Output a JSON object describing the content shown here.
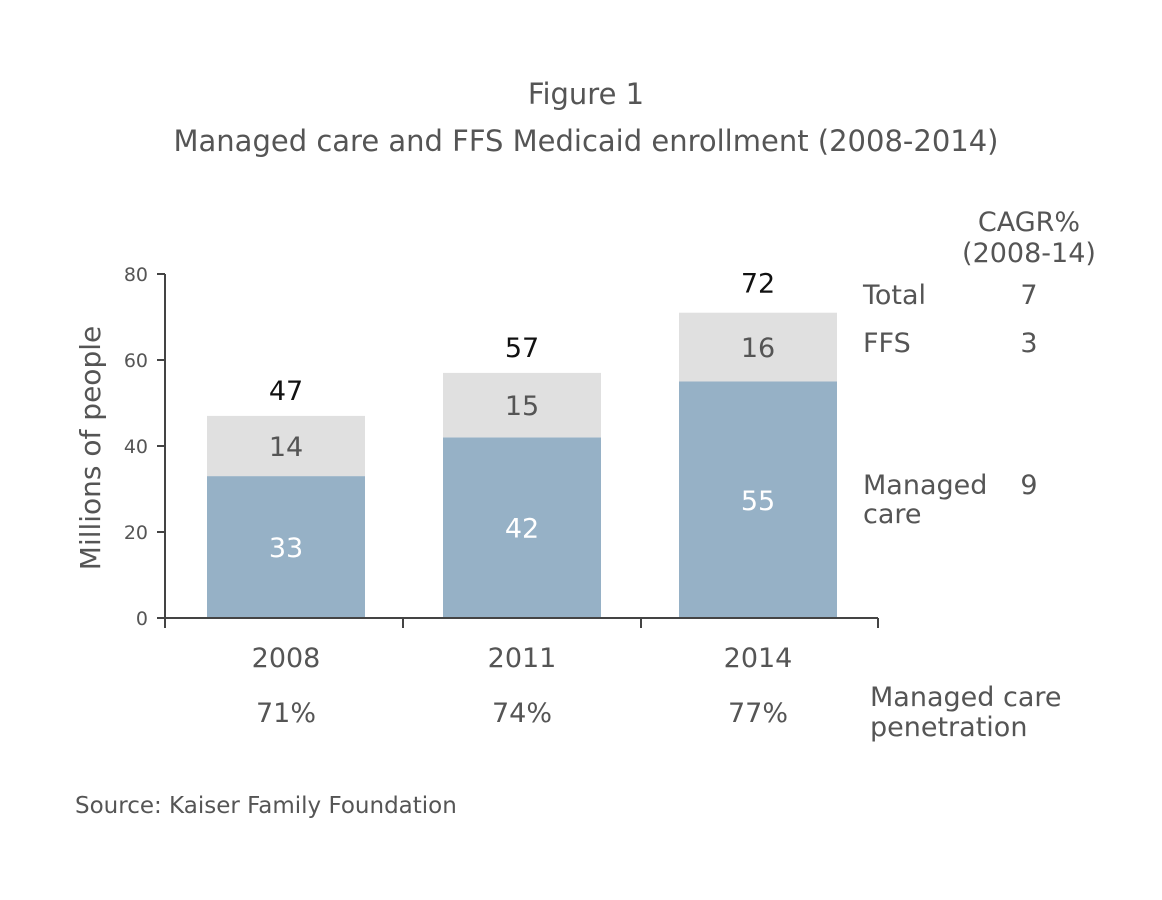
{
  "title_line1": "Figure 1",
  "title_line2": "Managed care and FFS Medicaid enrollment (2008-2014)",
  "source": "Source: Kaiser Family Foundation",
  "chart_data": {
    "type": "bar",
    "stacked": true,
    "categories": [
      "2008",
      "2011",
      "2014"
    ],
    "series": [
      {
        "name": "Managed care",
        "values": [
          33,
          42,
          55
        ],
        "color": "#96b1c6"
      },
      {
        "name": "FFS",
        "values": [
          14,
          15,
          16
        ],
        "color": "#e0e0e0"
      }
    ],
    "totals": [
      47,
      57,
      72
    ],
    "ylabel": "Millions of people",
    "xlabel": "",
    "ylim": [
      0,
      80
    ],
    "yticks": [
      0,
      20,
      40,
      60,
      80
    ],
    "grid": false,
    "penetration": {
      "label_line1": "Managed care",
      "label_line2": "penetration",
      "values": [
        "71%",
        "74%",
        "77%"
      ]
    },
    "cagr": {
      "header_line1": "CAGR%",
      "header_line2": "(2008-14)",
      "rows": [
        {
          "label": "Total",
          "value": "7"
        },
        {
          "label": "FFS",
          "value": "3"
        },
        {
          "label_line1": "Managed",
          "label_line2": "care",
          "value": "9"
        }
      ]
    }
  }
}
